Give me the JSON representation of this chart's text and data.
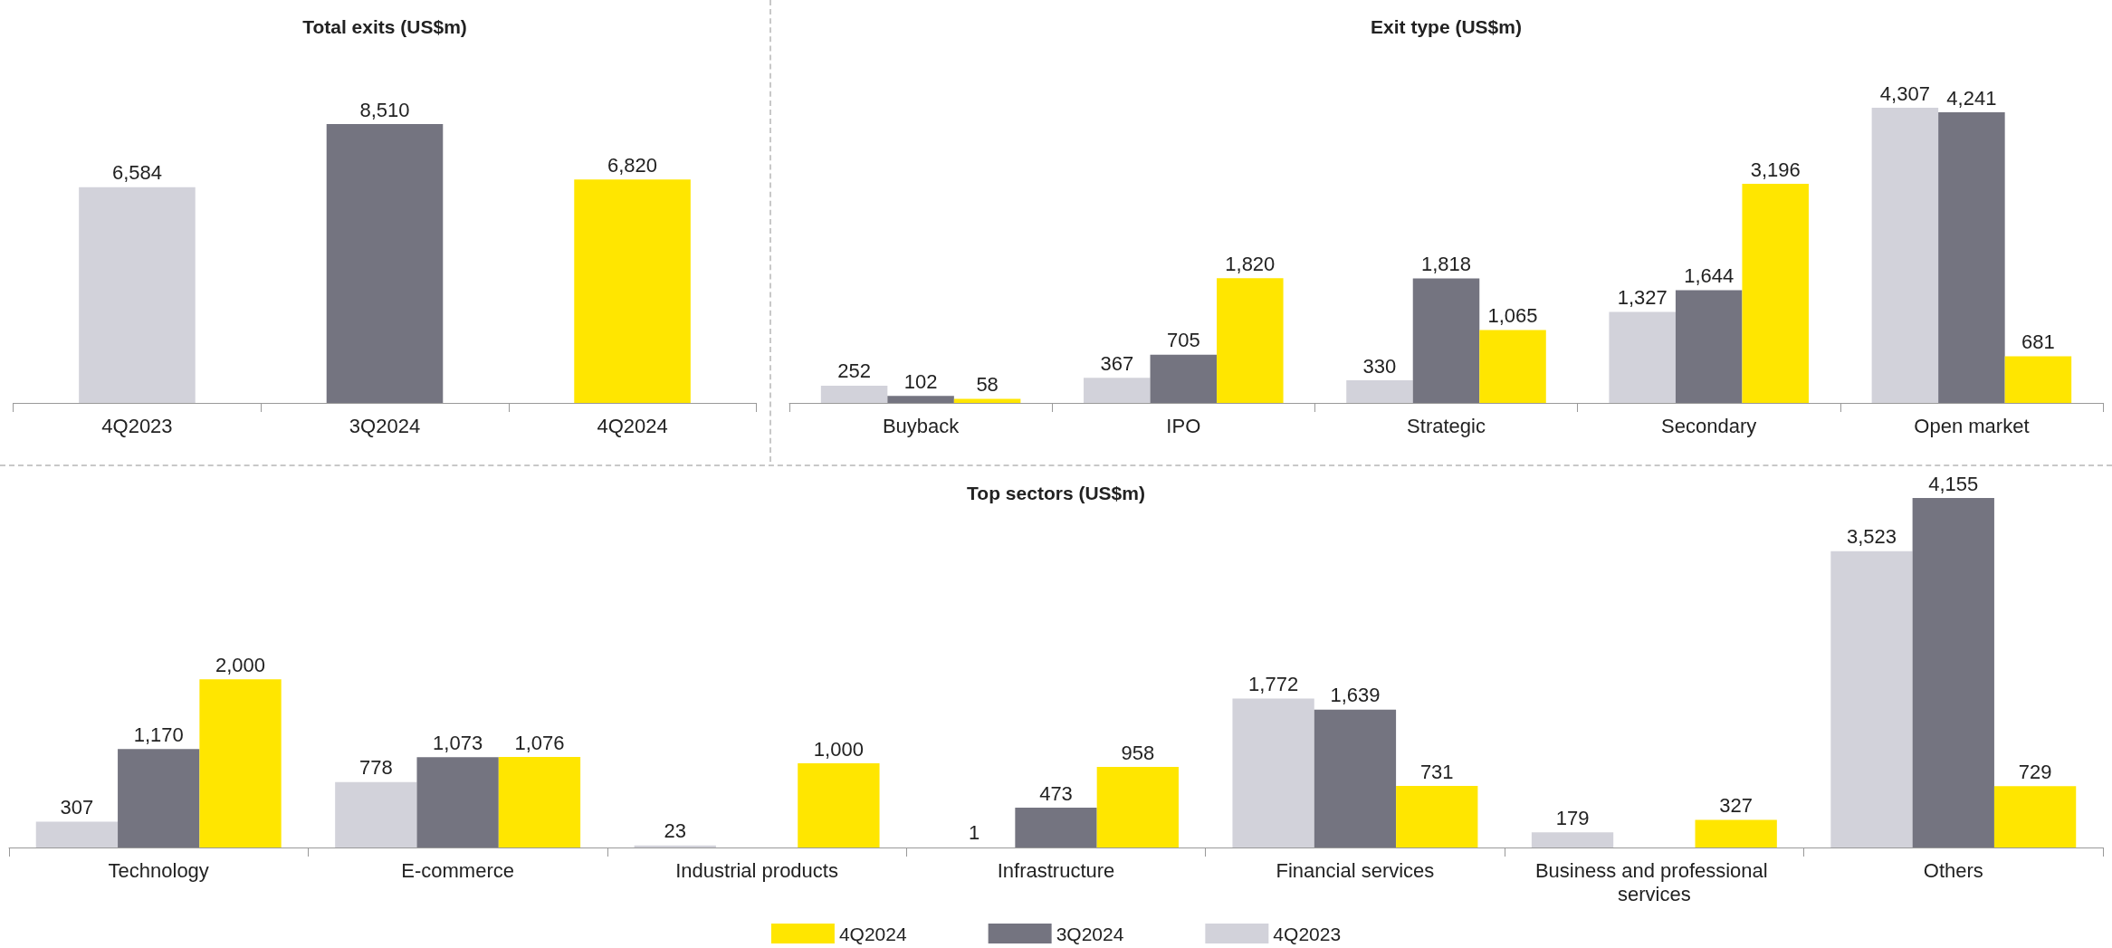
{
  "chart_data": [
    {
      "type": "bar",
      "title": "Total exits (US$m)",
      "categories": [
        "4Q2023",
        "3Q2024",
        "4Q2024"
      ],
      "values": [
        6584,
        8510,
        6820
      ],
      "value_labels": [
        "6,584",
        "8,510",
        "6,820"
      ],
      "colors": [
        "#d2d2da",
        "#747480",
        "#ffe600"
      ],
      "grid": false,
      "legend": false
    },
    {
      "type": "bar",
      "title": "Exit type (US$m)",
      "categories": [
        "Buyback",
        "IPO",
        "Strategic",
        "Secondary",
        "Open market"
      ],
      "series": [
        {
          "color": "#d2d2da",
          "values": [
            252,
            367,
            330,
            1327,
            4307
          ],
          "value_labels": [
            "252",
            "367",
            "330",
            "1,327",
            "4,307"
          ]
        },
        {
          "color": "#747480",
          "values": [
            102,
            705,
            1818,
            1644,
            4241
          ],
          "value_labels": [
            "102",
            "705",
            "1,818",
            "1,644",
            "4,241"
          ]
        },
        {
          "color": "#ffe600",
          "values": [
            58,
            1820,
            1065,
            3196,
            681
          ],
          "value_labels": [
            "58",
            "1,820",
            "1,065",
            "3,196",
            "681"
          ]
        }
      ],
      "grid": false,
      "legend": false
    },
    {
      "type": "bar",
      "title": "Top sectors (US$m)",
      "categories": [
        "Technology",
        "E-commerce",
        "Industrial products",
        "Infrastructure",
        "Financial services",
        "Business and professional services",
        "Others"
      ],
      "series": [
        {
          "name": "4Q2023",
          "color": "#d2d2da",
          "values": [
            307,
            778,
            23,
            1,
            1772,
            179,
            3523
          ],
          "value_labels": [
            "307",
            "778",
            "23",
            "1",
            "1,772",
            "179",
            "3,523"
          ]
        },
        {
          "name": "3Q2024",
          "color": "#747480",
          "values": [
            1170,
            1073,
            null,
            473,
            1639,
            null,
            4155
          ],
          "value_labels": [
            "1,170",
            "1,073",
            null,
            "473",
            "1,639",
            null,
            "4,155"
          ]
        },
        {
          "name": "4Q2024",
          "color": "#ffe600",
          "values": [
            2000,
            1076,
            1000,
            958,
            731,
            327,
            729
          ],
          "value_labels": [
            "2,000",
            "1,076",
            "1,000",
            "958",
            "731",
            "327",
            "729"
          ]
        }
      ],
      "grid": false,
      "legend": "bottom"
    }
  ]
}
